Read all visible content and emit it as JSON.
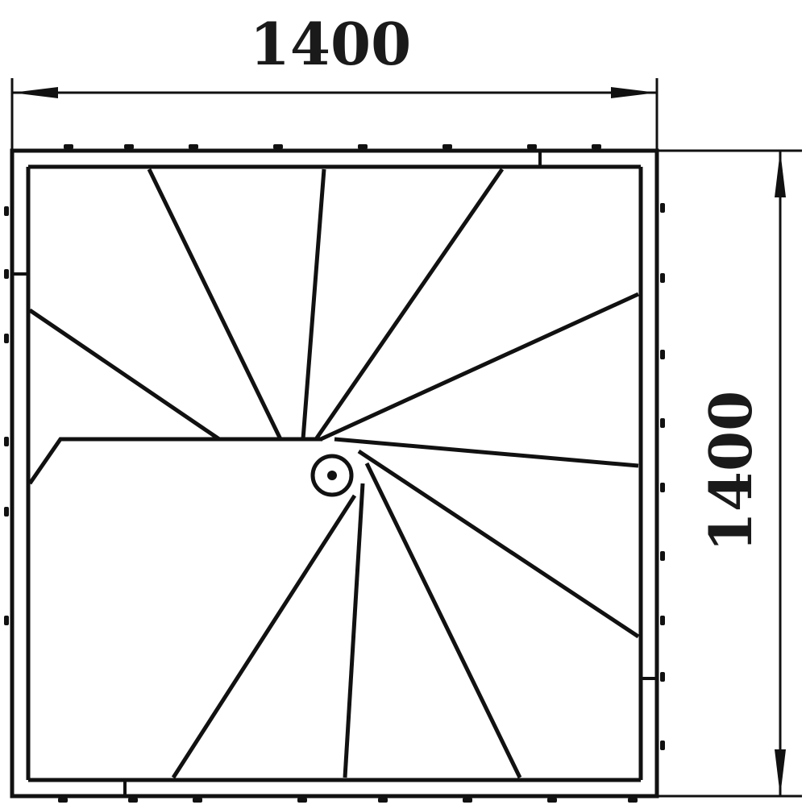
{
  "dimensions": {
    "width_label": "1400",
    "height_label": "1400"
  },
  "colors": {
    "ink": "#111111",
    "background": "#ffffff"
  }
}
